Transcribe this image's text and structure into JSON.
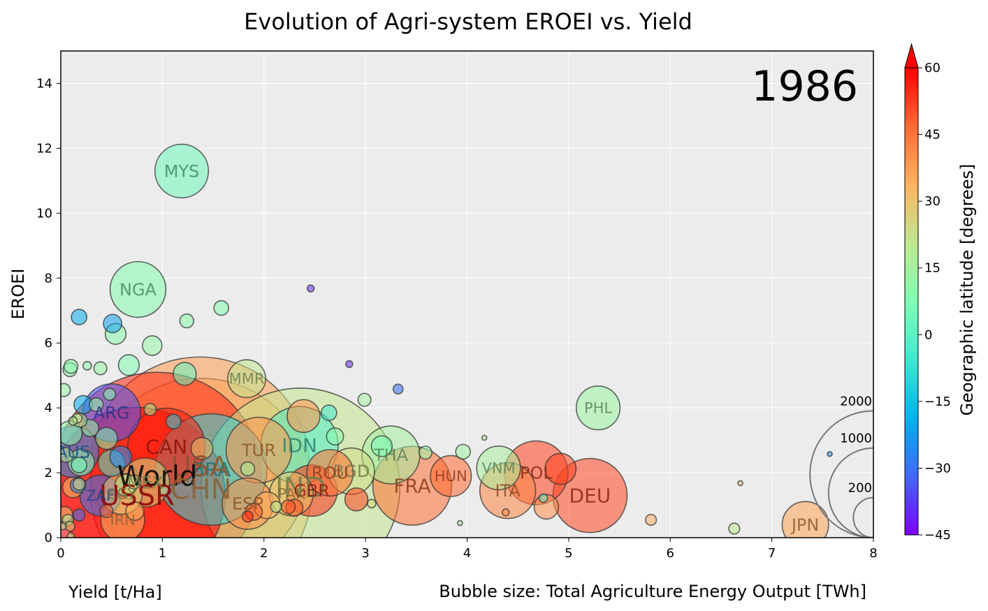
{
  "chart_data": {
    "type": "scatter",
    "title": "Evolution of Agri-system EROEI vs. Yield",
    "year_label": "1986",
    "xlabel": "Yield [t/Ha]",
    "ylabel": "EROEI",
    "size_caption": "Bubble size: Total Agriculture Energy Output [TWh]",
    "colorbar_label": "Geographic latitude [degrees]",
    "xlim": [
      0,
      8
    ],
    "ylim": [
      0,
      15
    ],
    "x_ticks": [
      0,
      1,
      2,
      3,
      4,
      5,
      6,
      7,
      8
    ],
    "y_ticks": [
      0,
      2,
      4,
      6,
      8,
      10,
      12,
      14
    ],
    "colorbar_ticks": [
      60,
      45,
      30,
      15,
      0,
      -15,
      -30,
      -45
    ],
    "colorbar_range": [
      -45,
      60
    ],
    "grid": true,
    "size_legend": [
      {
        "value": 2000,
        "label": "2000"
      },
      {
        "value": 1000,
        "label": "1000"
      },
      {
        "value": 200,
        "label": "200"
      }
    ],
    "points": [
      {
        "label": "MYS",
        "x": 1.19,
        "y": 11.3,
        "size": 120,
        "lat": 4
      },
      {
        "label": "NGA",
        "x": 0.76,
        "y": 7.65,
        "size": 130,
        "lat": 9
      },
      {
        "label": "MMR",
        "x": 1.83,
        "y": 4.9,
        "size": 60,
        "lat": 21
      },
      {
        "label": "PHL",
        "x": 5.29,
        "y": 4.0,
        "size": 80,
        "lat": 13
      },
      {
        "label": "ARG",
        "x": 0.5,
        "y": 3.85,
        "size": 140,
        "lat": -34
      },
      {
        "label": "AUS",
        "x": 0.12,
        "y": 2.65,
        "size": 110,
        "lat": -25
      },
      {
        "label": "CAN",
        "x": 1.04,
        "y": 2.8,
        "size": 250,
        "lat": 56
      },
      {
        "label": "TUR",
        "x": 1.95,
        "y": 2.7,
        "size": 180,
        "lat": 39
      },
      {
        "label": "IDN",
        "x": 2.35,
        "y": 2.85,
        "size": 250,
        "lat": -2
      },
      {
        "label": "THA",
        "x": 3.25,
        "y": 2.55,
        "size": 140,
        "lat": 15
      },
      {
        "label": "VNM",
        "x": 4.31,
        "y": 2.15,
        "size": 80,
        "lat": 16
      },
      {
        "label": "POL",
        "x": 4.68,
        "y": 2.0,
        "size": 170,
        "lat": 52
      },
      {
        "label": "BGD",
        "x": 2.86,
        "y": 2.05,
        "size": 90,
        "lat": 24
      },
      {
        "label": "ROU",
        "x": 2.65,
        "y": 2.0,
        "size": 90,
        "lat": 46
      },
      {
        "label": "HUN",
        "x": 3.84,
        "y": 1.9,
        "size": 70,
        "lat": 47
      },
      {
        "label": "FRA",
        "x": 3.46,
        "y": 1.6,
        "size": 260,
        "lat": 46
      },
      {
        "label": "ITA",
        "x": 4.4,
        "y": 1.45,
        "size": 130,
        "lat": 42
      },
      {
        "label": "DEU",
        "x": 5.21,
        "y": 1.3,
        "size": 230,
        "lat": 51
      },
      {
        "label": "BRA",
        "x": 1.48,
        "y": 2.1,
        "size": 520,
        "lat": -10
      },
      {
        "label": "USA",
        "x": 1.37,
        "y": 2.2,
        "size": 2000,
        "lat": 38
      },
      {
        "label": "World",
        "x": 0.95,
        "y": 1.9,
        "size": 1800,
        "lat": 55
      },
      {
        "label": "CHN",
        "x": 1.38,
        "y": 1.5,
        "size": 2050,
        "lat": 35
      },
      {
        "label": "USSR",
        "x": 0.75,
        "y": 1.3,
        "size": 1300,
        "lat": 60
      },
      {
        "label": "IND",
        "x": 2.36,
        "y": 1.55,
        "size": 1650,
        "lat": 21
      },
      {
        "label": "MEX",
        "x": 0.83,
        "y": 1.7,
        "size": 100,
        "lat": 23
      },
      {
        "label": "GBR",
        "x": 2.47,
        "y": 1.45,
        "size": 110,
        "lat": 54
      },
      {
        "label": "PAK",
        "x": 2.27,
        "y": 1.35,
        "size": 80,
        "lat": 30
      },
      {
        "label": "ESP",
        "x": 1.84,
        "y": 1.05,
        "size": 110,
        "lat": 40
      },
      {
        "label": "ZAF",
        "x": 0.39,
        "y": 1.3,
        "size": 70,
        "lat": -29
      },
      {
        "label": "EGY",
        "x": 0.6,
        "y": 1.35,
        "size": 70,
        "lat": 27
      },
      {
        "label": "IRN",
        "x": 0.61,
        "y": 0.55,
        "size": 80,
        "lat": 32
      },
      {
        "label": "JPN",
        "x": 7.33,
        "y": 0.4,
        "size": 90,
        "lat": 36
      }
    ],
    "unlabeled_points": [
      {
        "x": 0.18,
        "y": 6.8,
        "size": 10,
        "lat": -20
      },
      {
        "x": 0.51,
        "y": 6.6,
        "size": 14,
        "lat": -22
      },
      {
        "x": 0.54,
        "y": 6.28,
        "size": 18,
        "lat": 10
      },
      {
        "x": 0.9,
        "y": 5.92,
        "size": 16,
        "lat": 12
      },
      {
        "x": 1.24,
        "y": 6.68,
        "size": 8,
        "lat": 10
      },
      {
        "x": 1.58,
        "y": 7.08,
        "size": 9,
        "lat": 8
      },
      {
        "x": 2.46,
        "y": 7.68,
        "size": 2,
        "lat": -40
      },
      {
        "x": 0.67,
        "y": 5.32,
        "size": 18,
        "lat": 8
      },
      {
        "x": 1.22,
        "y": 5.05,
        "size": 22,
        "lat": 2
      },
      {
        "x": 0.09,
        "y": 5.18,
        "size": 8,
        "lat": 10
      },
      {
        "x": 0.1,
        "y": 5.28,
        "size": 8,
        "lat": 10
      },
      {
        "x": 0.39,
        "y": 5.22,
        "size": 7,
        "lat": 12
      },
      {
        "x": 0.26,
        "y": 5.3,
        "size": 3,
        "lat": 10
      },
      {
        "x": 0.03,
        "y": 4.55,
        "size": 7,
        "lat": 12
      },
      {
        "x": 0.48,
        "y": 4.42,
        "size": 6,
        "lat": 10
      },
      {
        "x": 2.84,
        "y": 5.35,
        "size": 2,
        "lat": -40
      },
      {
        "x": 3.32,
        "y": 4.58,
        "size": 4,
        "lat": -30
      },
      {
        "x": 2.99,
        "y": 4.25,
        "size": 7,
        "lat": 15
      },
      {
        "x": 0.22,
        "y": 4.1,
        "size": 14,
        "lat": -20
      },
      {
        "x": 0.35,
        "y": 4.1,
        "size": 8,
        "lat": 12
      },
      {
        "x": 0.88,
        "y": 3.95,
        "size": 6,
        "lat": 18
      },
      {
        "x": 2.64,
        "y": 3.85,
        "size": 10,
        "lat": -5
      },
      {
        "x": 2.39,
        "y": 3.75,
        "size": 45,
        "lat": 40
      },
      {
        "x": 1.11,
        "y": 3.58,
        "size": 9,
        "lat": -10
      },
      {
        "x": 0.19,
        "y": 3.62,
        "size": 8,
        "lat": 15
      },
      {
        "x": 0.16,
        "y": 3.68,
        "size": 4,
        "lat": 20
      },
      {
        "x": 0.12,
        "y": 3.6,
        "size": 3,
        "lat": 18
      },
      {
        "x": 0.29,
        "y": 3.38,
        "size": 12,
        "lat": 12
      },
      {
        "x": 0.09,
        "y": 3.22,
        "size": 25,
        "lat": 10
      },
      {
        "x": 0.45,
        "y": 3.06,
        "size": 20,
        "lat": 5
      },
      {
        "x": 2.7,
        "y": 3.12,
        "size": 12,
        "lat": 10
      },
      {
        "x": 4.17,
        "y": 3.08,
        "size": 1,
        "lat": 20
      },
      {
        "x": 3.59,
        "y": 2.62,
        "size": 7,
        "lat": 12
      },
      {
        "x": 3.96,
        "y": 2.65,
        "size": 9,
        "lat": 14
      },
      {
        "x": 3.16,
        "y": 2.82,
        "size": 18,
        "lat": 5
      },
      {
        "x": 1.39,
        "y": 2.75,
        "size": 20,
        "lat": 30
      },
      {
        "x": 0.05,
        "y": 2.55,
        "size": 9,
        "lat": 18
      },
      {
        "x": 0.59,
        "y": 2.49,
        "size": 20,
        "lat": -25
      },
      {
        "x": 0.5,
        "y": 2.3,
        "size": 30,
        "lat": -5
      },
      {
        "x": 0.2,
        "y": 2.32,
        "size": 30,
        "lat": 12
      },
      {
        "x": 0.18,
        "y": 2.24,
        "size": 10,
        "lat": 5
      },
      {
        "x": 4.92,
        "y": 2.12,
        "size": 40,
        "lat": 52
      },
      {
        "x": 7.57,
        "y": 2.58,
        "size": 1,
        "lat": -25
      },
      {
        "x": 1.84,
        "y": 2.12,
        "size": 8,
        "lat": 18
      },
      {
        "x": 0.72,
        "y": 1.72,
        "size": 8,
        "lat": 25
      },
      {
        "x": 0.64,
        "y": 1.62,
        "size": 20,
        "lat": 20
      },
      {
        "x": 0.12,
        "y": 1.55,
        "size": 18,
        "lat": 30
      },
      {
        "x": 0.17,
        "y": 1.62,
        "size": 10,
        "lat": -25
      },
      {
        "x": 0.18,
        "y": 1.65,
        "size": 6,
        "lat": 25
      },
      {
        "x": 6.69,
        "y": 1.68,
        "size": 1,
        "lat": 30
      },
      {
        "x": 2.91,
        "y": 1.18,
        "size": 22,
        "lat": 52
      },
      {
        "x": 3.06,
        "y": 1.05,
        "size": 3,
        "lat": 25
      },
      {
        "x": 4.75,
        "y": 1.22,
        "size": 3,
        "lat": 0
      },
      {
        "x": 4.78,
        "y": 0.95,
        "size": 25,
        "lat": 40
      },
      {
        "x": 2.03,
        "y": 1.0,
        "size": 30,
        "lat": 35
      },
      {
        "x": 2.12,
        "y": 0.95,
        "size": 5,
        "lat": 18
      },
      {
        "x": 2.24,
        "y": 0.95,
        "size": 8,
        "lat": 50
      },
      {
        "x": 2.3,
        "y": 0.92,
        "size": 12,
        "lat": 50
      },
      {
        "x": 1.9,
        "y": 0.8,
        "size": 12,
        "lat": 48
      },
      {
        "x": 1.84,
        "y": 0.65,
        "size": 5,
        "lat": 55
      },
      {
        "x": 0.73,
        "y": 0.82,
        "size": 14,
        "lat": 35
      },
      {
        "x": 0.45,
        "y": 0.82,
        "size": 7,
        "lat": 48
      },
      {
        "x": 0.18,
        "y": 0.7,
        "size": 6,
        "lat": -30
      },
      {
        "x": 0.04,
        "y": 0.72,
        "size": 10,
        "lat": 30
      },
      {
        "x": 0.07,
        "y": 0.55,
        "size": 5,
        "lat": 15
      },
      {
        "x": 0.09,
        "y": 0.35,
        "size": 4,
        "lat": 25
      },
      {
        "x": 0.1,
        "y": 0.05,
        "size": 2,
        "lat": 20
      },
      {
        "x": 5.81,
        "y": 0.55,
        "size": 5,
        "lat": 35
      },
      {
        "x": 6.63,
        "y": 0.28,
        "size": 5,
        "lat": 20
      },
      {
        "x": 4.38,
        "y": 0.78,
        "size": 2,
        "lat": 40
      },
      {
        "x": 3.93,
        "y": 0.45,
        "size": 1,
        "lat": 15
      },
      {
        "x": 0.02,
        "y": 0.35,
        "size": 2,
        "lat": 20
      }
    ]
  }
}
